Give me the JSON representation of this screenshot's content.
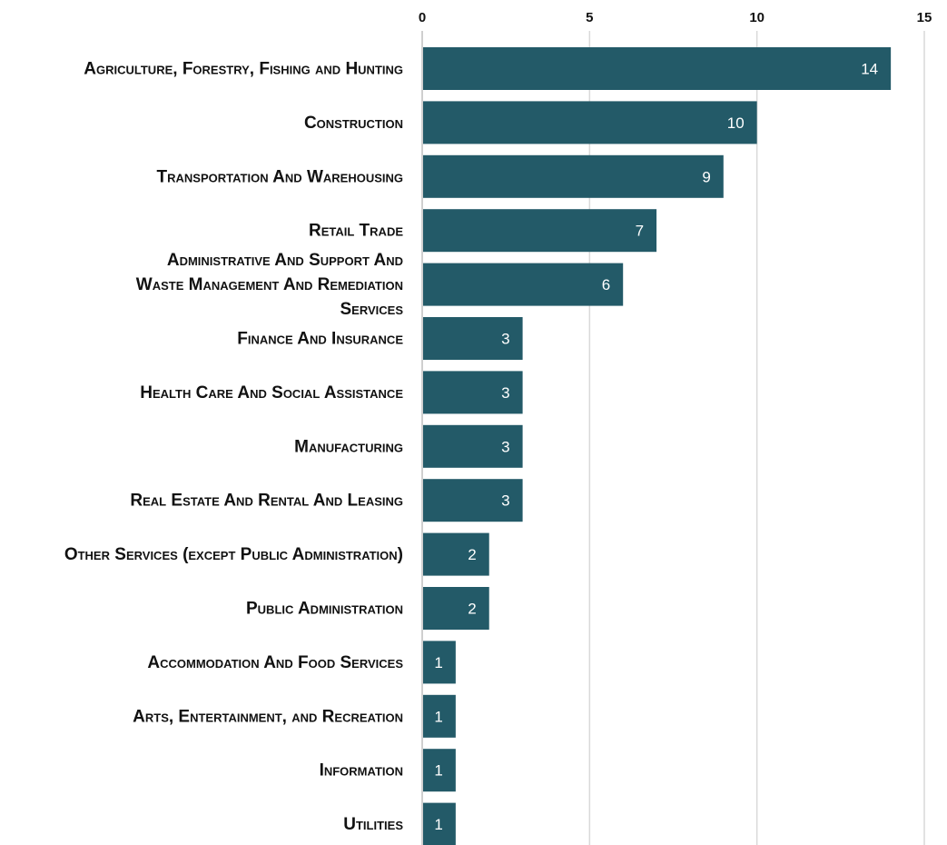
{
  "chart_data": {
    "type": "bar",
    "orientation": "horizontal",
    "title": "",
    "xlabel": "",
    "ylabel": "",
    "xlim": [
      0,
      15
    ],
    "x_ticks": [
      0,
      5,
      10,
      15
    ],
    "x_tick_labels": [
      "0",
      "5",
      "10",
      "15"
    ],
    "x_axis_position": "top",
    "grid": true,
    "legend": "none",
    "bar_color": "#235a68",
    "data_label_color": "#ffffff",
    "categories": [
      "Agriculture, Forestry, Fishing and Hunting",
      "Construction",
      "Transportation And Warehousing",
      "Retail Trade",
      "Administrative And Support And Waste Management And Remediation Services",
      "Finance And Insurance",
      "Health Care And Social Assistance",
      "Manufacturing",
      "Real Estate And Rental And Leasing",
      "Other Services (except Public Administration)",
      "Public Administration",
      "Accommodation And Food Services",
      "Arts, Entertainment, and Recreation",
      "Information",
      "Utilities"
    ],
    "values": [
      14,
      10,
      9,
      7,
      6,
      3,
      3,
      3,
      3,
      2,
      2,
      1,
      1,
      1,
      1
    ]
  }
}
